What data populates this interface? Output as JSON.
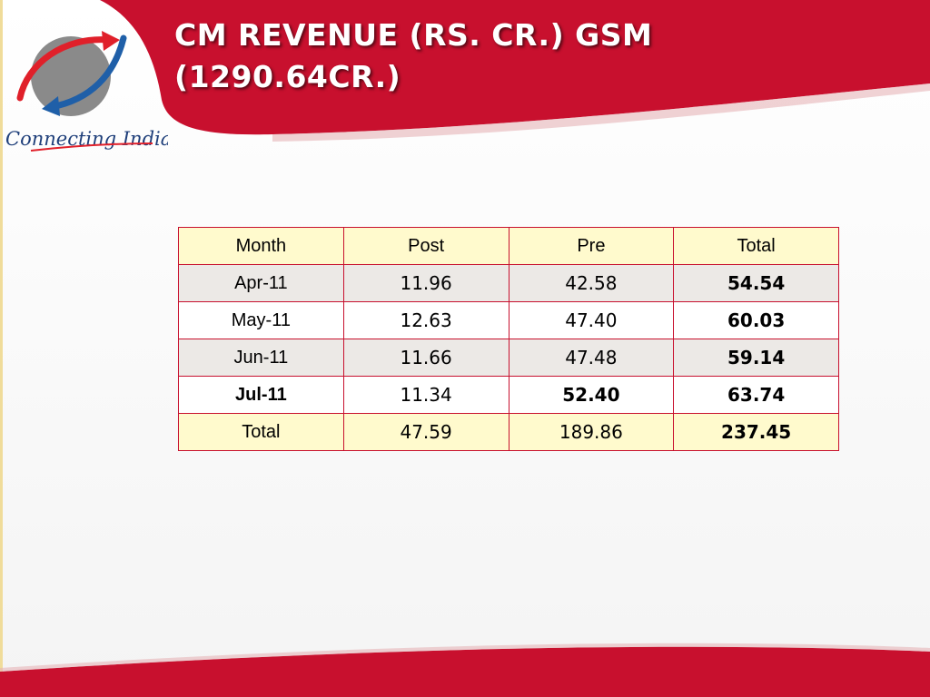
{
  "title": {
    "line1": "CM REVENUE (RS. CR.) GSM",
    "line2": "(1290.64CR.)"
  },
  "logo": {
    "text": "Connecting India",
    "colors": {
      "circle": "#8a8a8a",
      "arrow_red": "#e0202a",
      "arrow_blue": "#1f5fa8"
    }
  },
  "colors": {
    "banner_red": "#c8102e",
    "table_border": "#c8102e",
    "header_fill": "#fffacd",
    "alt_row_fill": "#ece9e6"
  },
  "table": {
    "headers": [
      "Month",
      "Post",
      "Pre",
      "Total"
    ],
    "rows": [
      [
        "Apr-11",
        "11.96",
        "42.58",
        "54.54"
      ],
      [
        "May-11",
        "12.63",
        "47.40",
        "60.03"
      ],
      [
        "Jun-11",
        "11.66",
        "47.48",
        "59.14"
      ],
      [
        "Jul-11",
        "11.34",
        "52.40",
        "63.74"
      ],
      [
        "Total",
        "47.59",
        "189.86",
        "237.45"
      ]
    ]
  }
}
